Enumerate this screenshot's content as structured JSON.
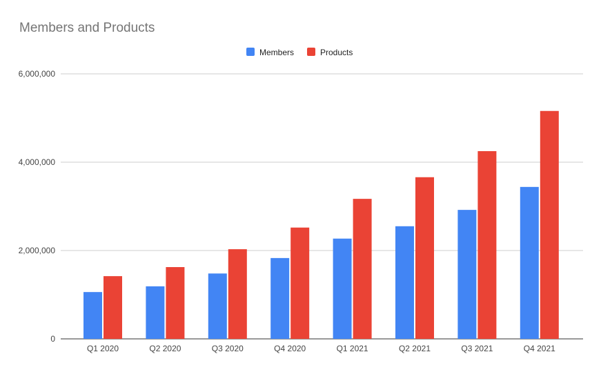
{
  "chart_data": {
    "type": "bar",
    "title": "Members and Products",
    "xlabel": "",
    "ylabel": "",
    "categories": [
      "Q1 2020",
      "Q2 2020",
      "Q3 2020",
      "Q4 2020",
      "Q1 2021",
      "Q2 2021",
      "Q3 2021",
      "Q4 2021"
    ],
    "series": [
      {
        "name": "Members",
        "color": "#4285f4",
        "values": [
          1060000,
          1190000,
          1480000,
          1830000,
          2270000,
          2550000,
          2920000,
          3440000
        ]
      },
      {
        "name": "Products",
        "color": "#ea4335",
        "values": [
          1420000,
          1625000,
          2030000,
          2520000,
          3170000,
          3660000,
          4250000,
          5160000
        ]
      }
    ],
    "ylim": [
      0,
      6000000
    ],
    "yticks": [
      0,
      2000000,
      4000000,
      6000000
    ],
    "ytick_labels": [
      "0",
      "2,000,000",
      "4,000,000",
      "6,000,000"
    ],
    "grid": true,
    "legend_position": "top-center"
  }
}
